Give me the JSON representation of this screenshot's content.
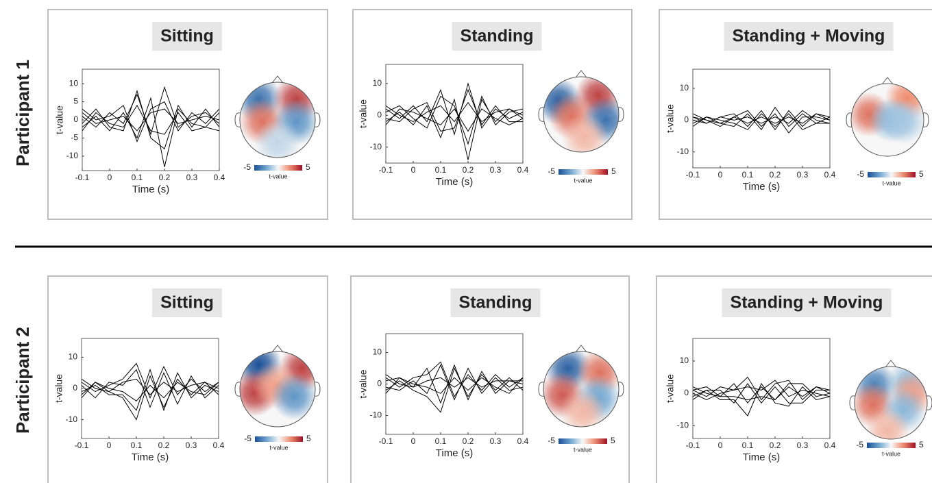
{
  "row_labels": [
    "Participant 1",
    "Participant 2"
  ],
  "chart_data": [
    {
      "type": "line",
      "title": "Sitting",
      "x_label": "Time (s)",
      "y_label": "t-value",
      "line_color": "#000000",
      "x": [
        -0.1,
        -0.05,
        0,
        0.05,
        0.1,
        0.15,
        0.2,
        0.25,
        0.3,
        0.35,
        0.4
      ],
      "xlim": [
        -0.1,
        0.4
      ],
      "xticks": [
        -0.1,
        0,
        0.1,
        0.2,
        0.3,
        0.4
      ],
      "ylim": [
        -14,
        14
      ],
      "yticks": [
        -10,
        -5,
        0,
        5,
        10
      ],
      "series": [
        {
          "values": [
            1,
            -2,
            2,
            -1,
            7,
            -4,
            9,
            -2,
            1,
            2,
            -1
          ]
        },
        {
          "values": [
            -2,
            1,
            -3,
            2,
            -5,
            6,
            -13,
            3,
            -1,
            -2,
            2
          ]
        },
        {
          "values": [
            3,
            0,
            1,
            4,
            -6,
            3,
            5,
            -3,
            2,
            -1,
            3
          ]
        },
        {
          "values": [
            -1,
            3,
            -2,
            -3,
            8,
            -5,
            -8,
            4,
            -2,
            3,
            -2
          ]
        },
        {
          "values": [
            2,
            -1,
            0,
            1,
            -3,
            2,
            3,
            -1,
            0,
            1,
            0
          ]
        },
        {
          "values": [
            -3,
            2,
            -1,
            -2,
            4,
            -3,
            -4,
            2,
            -3,
            -2,
            -3
          ]
        }
      ],
      "topomap": {
        "clim": [
          -5,
          5
        ],
        "cticks": [
          -5,
          5
        ],
        "colorbar_label": "t-value",
        "blobs": [
          {
            "x": -0.5,
            "y": 0.55,
            "value": -4
          },
          {
            "x": 0.5,
            "y": 0.55,
            "value": 4
          },
          {
            "x": -0.4,
            "y": -0.05,
            "value": 3
          },
          {
            "x": 0.5,
            "y": -0.05,
            "value": -3
          },
          {
            "x": 0,
            "y": -0.6,
            "value": -1
          }
        ]
      }
    },
    {
      "type": "line",
      "title": "Standing",
      "x_label": "Time (s)",
      "y_label": "t-value",
      "line_color": "#000000",
      "x": [
        -0.1,
        -0.05,
        0,
        0.05,
        0.1,
        0.15,
        0.2,
        0.25,
        0.3,
        0.35,
        0.4
      ],
      "xlim": [
        -0.1,
        0.4
      ],
      "xticks": [
        -0.1,
        0,
        0.1,
        0.2,
        0.3,
        0.4
      ],
      "ylim": [
        -15,
        16
      ],
      "yticks": [
        -10,
        0,
        10
      ],
      "series": [
        {
          "values": [
            2,
            -1,
            3,
            -2,
            8,
            -6,
            10,
            -4,
            2,
            -1,
            1
          ]
        },
        {
          "values": [
            -2,
            1,
            -3,
            3,
            -7,
            5,
            -14,
            5,
            -2,
            2,
            -1
          ]
        },
        {
          "values": [
            1,
            3,
            -1,
            -4,
            6,
            3,
            -9,
            6,
            -3,
            1,
            2
          ]
        },
        {
          "values": [
            -1,
            -2,
            2,
            4,
            -5,
            -4,
            8,
            -3,
            3,
            -2,
            -2
          ]
        },
        {
          "values": [
            3,
            0,
            -2,
            1,
            3,
            -2,
            4,
            -2,
            1,
            2,
            0
          ]
        },
        {
          "values": [
            -3,
            2,
            1,
            -1,
            -3,
            2,
            -5,
            2,
            -1,
            -3,
            -1
          ]
        }
      ],
      "topomap": {
        "clim": [
          -5,
          5
        ],
        "cticks": [
          -5,
          5
        ],
        "colorbar_label": "t-value",
        "blobs": [
          {
            "x": -0.6,
            "y": 0.35,
            "value": -4.5
          },
          {
            "x": 0.45,
            "y": 0.5,
            "value": 4
          },
          {
            "x": -0.25,
            "y": -0.05,
            "value": 3
          },
          {
            "x": 0.65,
            "y": -0.15,
            "value": -4
          },
          {
            "x": 0.1,
            "y": -0.6,
            "value": 1.5
          }
        ]
      }
    },
    {
      "type": "line",
      "title": "Standing + Moving",
      "x_label": "Time (s)",
      "y_label": "t-value",
      "line_color": "#000000",
      "x": [
        -0.1,
        -0.05,
        0,
        0.05,
        0.1,
        0.15,
        0.2,
        0.25,
        0.3,
        0.35,
        0.4
      ],
      "xlim": [
        -0.1,
        0.4
      ],
      "xticks": [
        -0.1,
        0,
        0.1,
        0.2,
        0.3,
        0.4
      ],
      "ylim": [
        -15,
        16
      ],
      "yticks": [
        -10,
        0,
        10
      ],
      "series": [
        {
          "values": [
            1,
            -1,
            1,
            2,
            -2,
            3,
            -3,
            3,
            -2,
            2,
            1
          ]
        },
        {
          "values": [
            -1,
            1,
            -1,
            -2,
            2,
            -3,
            4,
            -2,
            2,
            -1,
            -1
          ]
        },
        {
          "values": [
            2,
            0,
            -1,
            1,
            3,
            -2,
            2,
            -4,
            1,
            1,
            0
          ]
        },
        {
          "values": [
            -2,
            1,
            0,
            -1,
            -3,
            2,
            -2,
            2,
            -3,
            -1,
            1
          ]
        },
        {
          "values": [
            0,
            -1,
            1,
            0,
            1,
            -1,
            1,
            -1,
            3,
            0,
            -1
          ]
        },
        {
          "values": [
            1,
            0,
            -2,
            1,
            -1,
            1,
            -1,
            1,
            -1,
            2,
            0
          ]
        }
      ],
      "topomap": {
        "clim": [
          -5,
          5
        ],
        "cticks": [
          -5,
          5
        ],
        "colorbar_label": "t-value",
        "blobs": [
          {
            "x": -0.5,
            "y": 0.15,
            "value": 3
          },
          {
            "x": 0.55,
            "y": 0.6,
            "value": 2.5
          },
          {
            "x": 0.1,
            "y": 0,
            "value": -2
          },
          {
            "x": 0.45,
            "y": -0.05,
            "value": -1.5
          }
        ]
      }
    },
    {
      "type": "line",
      "title": "Sitting",
      "x_label": "Time (s)",
      "y_label": "t-value",
      "line_color": "#000000",
      "x": [
        -0.1,
        -0.05,
        0,
        0.05,
        0.1,
        0.15,
        0.2,
        0.25,
        0.3,
        0.35,
        0.4
      ],
      "xlim": [
        -0.1,
        0.4
      ],
      "xticks": [
        -0.1,
        0,
        0.1,
        0.2,
        0.3,
        0.4
      ],
      "ylim": [
        -16,
        16
      ],
      "yticks": [
        -10,
        0,
        10
      ],
      "series": [
        {
          "values": [
            2,
            -1,
            1,
            3,
            8,
            -3,
            7,
            -2,
            3,
            -1,
            2
          ]
        },
        {
          "values": [
            -2,
            2,
            -1,
            -3,
            -10,
            4,
            -6,
            3,
            -2,
            2,
            -2
          ]
        },
        {
          "values": [
            1,
            -3,
            2,
            1,
            6,
            -6,
            5,
            -5,
            4,
            -3,
            1
          ]
        },
        {
          "values": [
            -1,
            1,
            -2,
            -2,
            -7,
            6,
            -7,
            5,
            -3,
            1,
            -1
          ]
        },
        {
          "values": [
            3,
            0,
            -1,
            2,
            3,
            -2,
            2,
            -1,
            1,
            2,
            0
          ]
        },
        {
          "values": [
            -3,
            2,
            0,
            -1,
            -4,
            1,
            -3,
            2,
            -1,
            -2,
            2
          ]
        }
      ],
      "topomap": {
        "clim": [
          -5,
          5
        ],
        "cticks": [
          -5,
          5
        ],
        "colorbar_label": "t-value",
        "blobs": [
          {
            "x": -0.5,
            "y": 0.65,
            "value": -5
          },
          {
            "x": 0.65,
            "y": 0.55,
            "value": 4
          },
          {
            "x": -0.6,
            "y": -0.1,
            "value": 4
          },
          {
            "x": -0.05,
            "y": 0.1,
            "value": 2
          },
          {
            "x": 0.45,
            "y": -0.2,
            "value": -3
          }
        ]
      }
    },
    {
      "type": "line",
      "title": "Standing",
      "x_label": "Time (s)",
      "y_label": "t-value",
      "line_color": "#000000",
      "x": [
        -0.1,
        -0.05,
        0,
        0.05,
        0.1,
        0.15,
        0.2,
        0.25,
        0.3,
        0.35,
        0.4
      ],
      "xlim": [
        -0.1,
        0.4
      ],
      "xticks": [
        -0.1,
        0,
        0.1,
        0.2,
        0.3,
        0.4
      ],
      "ylim": [
        -16,
        16
      ],
      "yticks": [
        -10,
        0,
        10
      ],
      "series": [
        {
          "values": [
            2,
            -1,
            2,
            3,
            7,
            -4,
            3,
            -2,
            3,
            -1,
            2
          ]
        },
        {
          "values": [
            -2,
            1,
            -2,
            -4,
            -9,
            5,
            -4,
            3,
            -2,
            2,
            -2
          ]
        },
        {
          "values": [
            1,
            2,
            -1,
            5,
            -6,
            6,
            -5,
            4,
            -3,
            1,
            1
          ]
        },
        {
          "values": [
            -1,
            -2,
            1,
            -3,
            6,
            -5,
            5,
            -3,
            2,
            -2,
            -1
          ]
        },
        {
          "values": [
            3,
            0,
            -1,
            1,
            2,
            -1,
            2,
            -1,
            1,
            1,
            0
          ]
        },
        {
          "values": [
            -3,
            2,
            0,
            -1,
            -3,
            2,
            -2,
            2,
            -1,
            -3,
            2
          ]
        }
      ],
      "topomap": {
        "clim": [
          -5,
          5
        ],
        "cticks": [
          -5,
          5
        ],
        "colorbar_label": "t-value",
        "blobs": [
          {
            "x": -0.35,
            "y": 0.55,
            "value": -4.5
          },
          {
            "x": 0.5,
            "y": 0.45,
            "value": 3
          },
          {
            "x": -0.5,
            "y": -0.15,
            "value": 3.5
          },
          {
            "x": 0.45,
            "y": -0.25,
            "value": -2.5
          },
          {
            "x": 0.05,
            "y": -0.6,
            "value": 1.5
          }
        ]
      }
    },
    {
      "type": "line",
      "title": "Standing + Moving",
      "x_label": "Time (s)",
      "y_label": "t-value",
      "line_color": "#000000",
      "x": [
        -0.1,
        -0.05,
        0,
        0.05,
        0.1,
        0.15,
        0.2,
        0.25,
        0.3,
        0.35,
        0.4
      ],
      "xlim": [
        -0.1,
        0.4
      ],
      "xticks": [
        -0.1,
        0,
        0.1,
        0.2,
        0.3,
        0.4
      ],
      "ylim": [
        -14,
        17
      ],
      "yticks": [
        -10,
        0,
        10
      ],
      "series": [
        {
          "values": [
            1,
            -1,
            2,
            1,
            5,
            -2,
            3,
            4,
            -2,
            2,
            1
          ]
        },
        {
          "values": [
            -1,
            1,
            -2,
            -2,
            -7,
            3,
            -3,
            -4,
            2,
            -2,
            -1
          ]
        },
        {
          "values": [
            2,
            0,
            -1,
            3,
            -3,
            2,
            -2,
            3,
            3,
            -1,
            0
          ]
        },
        {
          "values": [
            -2,
            1,
            1,
            -3,
            3,
            -3,
            2,
            -3,
            -3,
            1,
            1
          ]
        },
        {
          "values": [
            0,
            -2,
            0,
            1,
            2,
            1,
            4,
            -1,
            1,
            0,
            -1
          ]
        },
        {
          "values": [
            1,
            2,
            -1,
            -1,
            -2,
            -1,
            -2,
            2,
            -1,
            2,
            0
          ]
        }
      ],
      "topomap": {
        "clim": [
          -5,
          5
        ],
        "cticks": [
          -5,
          5
        ],
        "colorbar_label": "t-value",
        "blobs": [
          {
            "x": -0.45,
            "y": 0.5,
            "value": -3.5
          },
          {
            "x": -0.5,
            "y": -0.05,
            "value": 3
          },
          {
            "x": 0.5,
            "y": 0.55,
            "value": -2
          },
          {
            "x": 0.6,
            "y": 0.25,
            "value": 2
          },
          {
            "x": 0.35,
            "y": -0.2,
            "value": -2
          },
          {
            "x": -0.1,
            "y": -0.75,
            "value": 1.5
          }
        ]
      }
    }
  ]
}
